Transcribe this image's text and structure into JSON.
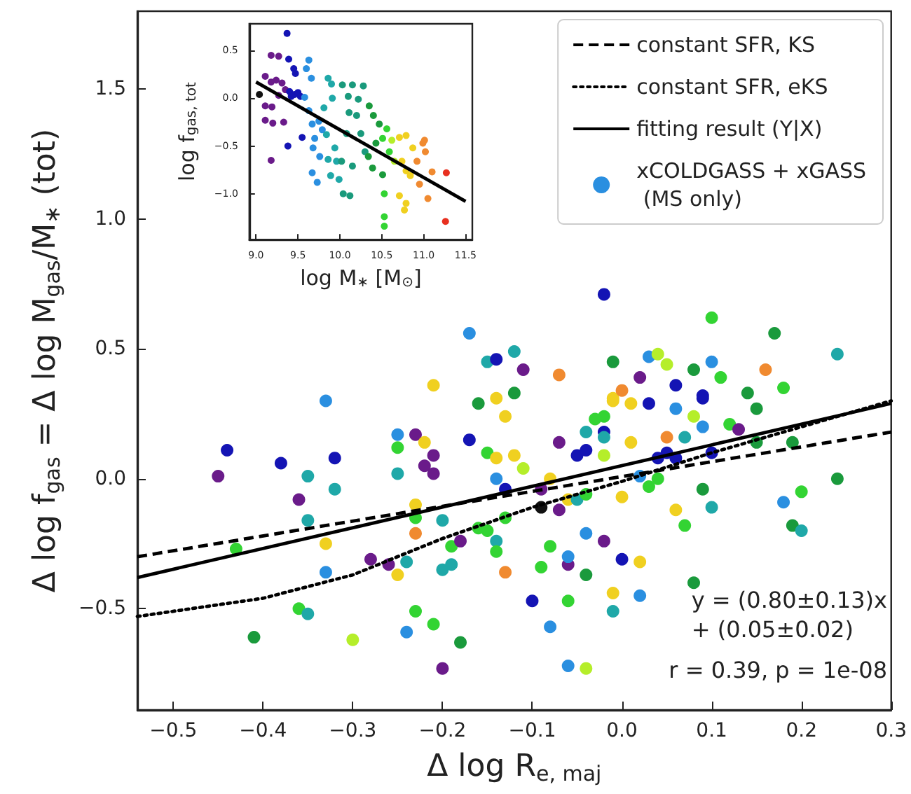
{
  "chart_data": [
    {
      "type": "scatter",
      "xlabel": "Δ log R$_{e, maj}$",
      "ylabel": "Δ log f$_{gas}$ = Δ log M$_{gas}$/M$_{∗}$ (tot)",
      "xlim": [
        -0.54,
        0.3
      ],
      "ylim": [
        -0.89,
        1.8
      ],
      "xticks": [
        {
          "value": -0.5,
          "label": "−0.5"
        },
        {
          "value": -0.4,
          "label": "−0.4"
        },
        {
          "value": -0.3,
          "label": "−0.3"
        },
        {
          "value": -0.2,
          "label": "−0.2"
        },
        {
          "value": -0.1,
          "label": "−0.1"
        },
        {
          "value": 0,
          "label": "0.0"
        },
        {
          "value": 0.1,
          "label": "0.1"
        },
        {
          "value": 0.2,
          "label": "0.2"
        },
        {
          "value": 0.3,
          "label": "0.3"
        }
      ],
      "yticks": [
        {
          "value": -0.5,
          "label": "−0.5"
        },
        {
          "value": 0,
          "label": "0.0"
        },
        {
          "value": 0.5,
          "label": "0.5"
        },
        {
          "value": 1,
          "label": "1.0"
        },
        {
          "value": 1.5,
          "label": "1.5"
        }
      ],
      "grid": false,
      "legend": "top right",
      "marker": "circle",
      "annotations": [
        "y = (0.80±0.13)x\n+ (0.05±0.02)",
        "r = 0.39, p = 1e-08"
      ],
      "series": [
        {
          "type": "line",
          "name": "constant SFR, KS",
          "color": "#000000",
          "line_style": "dashed",
          "marker": "none",
          "x": [
            -0.54,
            0.3
          ],
          "values": [
            -0.3,
            0.18
          ]
        },
        {
          "type": "line",
          "name": "constant SFR, eKS",
          "color": "#000000",
          "line_style": "dotted",
          "marker": "none",
          "x": [
            -0.54,
            -0.4,
            -0.3,
            -0.2,
            -0.1,
            0,
            0.1,
            0.2,
            0.3
          ],
          "values": [
            -0.53,
            -0.46,
            -0.37,
            -0.23,
            -0.11,
            -0.01,
            0.1,
            0.2,
            0.3
          ]
        },
        {
          "type": "line",
          "name": "fitting result (Y|X)",
          "color": "#000000",
          "line_style": "solid",
          "marker": "none",
          "x": [
            -0.54,
            0.3
          ],
          "values": [
            -0.38,
            0.29
          ]
        },
        {
          "type": "scatter",
          "name": "xCOLDGASS + xGASS\n (MS only)",
          "color": "#2a8fe0",
          "x": [
            -0.44,
            -0.45,
            -0.43,
            -0.41,
            -0.38,
            -0.36,
            -0.36,
            -0.35,
            -0.35,
            -0.35,
            -0.33,
            -0.33,
            -0.33,
            -0.32,
            -0.32,
            -0.3,
            -0.28,
            -0.26,
            -0.25,
            -0.25,
            -0.25,
            -0.24,
            -0.25,
            -0.24,
            -0.23,
            -0.23,
            -0.23,
            -0.22,
            -0.23,
            -0.22,
            -0.23,
            -0.21,
            -0.21,
            -0.21,
            -0.21,
            -0.2,
            -0.2,
            -0.2,
            -0.19,
            -0.19,
            -0.18,
            -0.18,
            -0.17,
            -0.17,
            -0.16,
            -0.16,
            -0.15,
            -0.15,
            -0.15,
            -0.14,
            -0.14,
            -0.14,
            -0.14,
            -0.14,
            -0.14,
            -0.13,
            -0.13,
            -0.12,
            -0.12,
            -0.13,
            -0.12,
            -0.11,
            -0.11,
            -0.13,
            -0.1,
            -0.09,
            -0.09,
            -0.08,
            -0.08,
            -0.09,
            -0.08,
            -0.07,
            -0.07,
            -0.07,
            -0.06,
            -0.06,
            -0.06,
            -0.06,
            -0.06,
            -0.05,
            -0.05,
            -0.04,
            -0.04,
            -0.04,
            -0.04,
            -0.04,
            -0.04,
            -0.03,
            -0.02,
            -0.02,
            -0.02,
            -0.02,
            -0.02,
            -0.02,
            -0.01,
            -0.01,
            -0.01,
            -0.01,
            -0.01,
            0,
            0,
            0,
            0.01,
            0.01,
            0.02,
            0.02,
            0.02,
            0.02,
            0.03,
            0.03,
            0.03,
            0.04,
            0.04,
            0.04,
            0.05,
            0.05,
            0.05,
            0.06,
            0.06,
            0.06,
            0.06,
            0.07,
            0.07,
            0.08,
            0.08,
            0.08,
            0.09,
            0.09,
            0.09,
            0.09,
            0.1,
            0.1,
            0.1,
            0.1,
            0.11,
            0.12,
            0.13,
            0.14,
            0.15,
            0.15,
            0.16,
            0.17,
            0.18,
            0.18,
            0.19,
            0.19,
            0.2,
            0.2,
            0.24,
            0.24
          ],
          "values": [
            0.11,
            0.01,
            -0.27,
            -0.61,
            0.06,
            -0.08,
            -0.5,
            0.01,
            -0.52,
            -0.16,
            -0.36,
            -0.25,
            0.3,
            0.08,
            -0.04,
            -0.62,
            -0.31,
            -0.33,
            0.17,
            0.12,
            0.02,
            -0.32,
            -0.37,
            -0.59,
            0.17,
            -0.1,
            -0.15,
            0.14,
            -0.51,
            0.05,
            -0.21,
            0.36,
            0.09,
            0.02,
            -0.56,
            -0.35,
            -0.16,
            -0.73,
            -0.26,
            -0.33,
            -0.63,
            -0.24,
            0.15,
            0.56,
            -0.19,
            0.29,
            0.1,
            0.45,
            -0.2,
            0.31,
            0.08,
            0,
            -0.24,
            0.46,
            -0.28,
            0.24,
            -0.15,
            0.49,
            0.09,
            -0.36,
            0.33,
            0.42,
            0.04,
            -0.04,
            -0.47,
            -0.11,
            -0.04,
            0,
            -0.26,
            -0.34,
            -0.57,
            -0.12,
            0.4,
            0.14,
            -0.33,
            -0.47,
            -0.3,
            -0.08,
            -0.72,
            0.09,
            -0.08,
            0.18,
            -0.37,
            -0.73,
            0.11,
            -0.21,
            -0.06,
            0.23,
            0.24,
            -0.24,
            0.18,
            0.71,
            0.16,
            0.09,
            0.31,
            -0.51,
            0.45,
            0.3,
            -0.44,
            -0.31,
            0.34,
            -0.07,
            0.14,
            0.29,
            -0.32,
            0.01,
            -0.45,
            0.39,
            -0.03,
            0.29,
            0.47,
            0.08,
            0,
            0.48,
            0.44,
            0.16,
            0.1,
            0.08,
            -0.12,
            0.36,
            0.27,
            0.16,
            -0.18,
            -0.4,
            0.42,
            0.24,
            0.31,
            -0.04,
            0.2,
            0.32,
            0.1,
            0.45,
            -0.11,
            0.62,
            0.39,
            0.21,
            0.19,
            0.33,
            0.27,
            0.14,
            0.42,
            0.56,
            -0.09,
            0.35,
            -0.18,
            0.14,
            -0.05,
            -0.2,
            0,
            0.48
          ],
          "colors": [
            "#1414b4",
            "#6a1b8a",
            "#33d433",
            "#1a9a3c",
            "#1414b4",
            "#6a1b8a",
            "#33d433",
            "#1fa8a8",
            "#1fa8a8",
            "#1fa8a8",
            "#2a8fe0",
            "#f0d020",
            "#2a8fe0",
            "#1414b4",
            "#1fa8a8",
            "#b5ee2a",
            "#6a1b8a",
            "#6a1b8a",
            "#2a8fe0",
            "#33d433",
            "#1fa8a8",
            "#1fa8a8",
            "#f0d020",
            "#2a8fe0",
            "#6a1b8a",
            "#f0d020",
            "#33d433",
            "#f0d020",
            "#33d433",
            "#6a1b8a",
            "#f08a30",
            "#f0d020",
            "#6a1b8a",
            "#6a1b8a",
            "#33d433",
            "#1fa8a8",
            "#1fa8a8",
            "#6a1b8a",
            "#33d433",
            "#1fa8a8",
            "#1a9a3c",
            "#6a1b8a",
            "#1414b4",
            "#2a8fe0",
            "#33d433",
            "#1a9a3c",
            "#33d433",
            "#1fa8a8",
            "#33d433",
            "#f0d020",
            "#f0d020",
            "#2a8fe0",
            "#1fa8a8",
            "#1414b4",
            "#33d433",
            "#f0d020",
            "#33d433",
            "#1fa8a8",
            "#f0d020",
            "#f08a30",
            "#1a9a3c",
            "#6a1b8a",
            "#b5ee2a",
            "#1414b4",
            "#1414b4",
            "#111111",
            "#6a1b8a",
            "#f0d020",
            "#33d433",
            "#33d433",
            "#2a8fe0",
            "#6a1b8a",
            "#f08a30",
            "#6a1b8a",
            "#6a1b8a",
            "#33d433",
            "#2a8fe0",
            "#f0d020",
            "#2a8fe0",
            "#1414b4",
            "#1fa8a8",
            "#1fa8a8",
            "#1a9a3c",
            "#b5ee2a",
            "#1414b4",
            "#2a8fe0",
            "#33d433",
            "#33d433",
            "#33d433",
            "#6a1b8a",
            "#1414b4",
            "#1414b4",
            "#1fa8a8",
            "#b5ee2a",
            "#f0d020",
            "#1fa8a8",
            "#1a9a3c",
            "#f0d020",
            "#f0d020",
            "#1414b4",
            "#f08a30",
            "#f0d020",
            "#f0d020",
            "#f0d020",
            "#f0d020",
            "#2a8fe0",
            "#2a8fe0",
            "#6a1b8a",
            "#33d433",
            "#1414b4",
            "#2a8fe0",
            "#1414b4",
            "#33d433",
            "#b5ee2a",
            "#b5ee2a",
            "#f08a30",
            "#1414b4",
            "#1414b4",
            "#f0d020",
            "#1414b4",
            "#2a8fe0",
            "#1fa8a8",
            "#33d433",
            "#1a9a3c",
            "#1a9a3c",
            "#b5ee2a",
            "#1414b4",
            "#1a9a3c",
            "#2a8fe0",
            "#1414b4",
            "#1414b4",
            "#2a8fe0",
            "#1fa8a8",
            "#33d433",
            "#33d433",
            "#33d433",
            "#6a1b8a",
            "#1a9a3c",
            "#1a9a3c",
            "#1a9a3c",
            "#f08a30",
            "#1a9a3c",
            "#2a8fe0",
            "#33d433",
            "#1a9a3c",
            "#1a9a3c",
            "#33d433",
            "#1fa8a8",
            "#1a9a3c",
            "#1fa8a8"
          ]
        }
      ]
    },
    {
      "type": "scatter",
      "xlabel": "log M$_{∗}$ [M$_{⊙}$]",
      "ylabel": "log f$_{gas, tot}$",
      "xlim": [
        8.92,
        11.58
      ],
      "ylim": [
        -1.48,
        0.78
      ],
      "xticks": [
        {
          "value": 9,
          "label": "9.0"
        },
        {
          "value": 9.5,
          "label": "9.5"
        },
        {
          "value": 10,
          "label": "10.0"
        },
        {
          "value": 10.5,
          "label": "10.5"
        },
        {
          "value": 11,
          "label": "11.0"
        },
        {
          "value": 11.5,
          "label": "11.5"
        }
      ],
      "yticks": [
        {
          "value": -1,
          "label": "−1.0"
        },
        {
          "value": -0.5,
          "label": "−0.5"
        },
        {
          "value": 0,
          "label": "0.0"
        },
        {
          "value": 0.5,
          "label": "0.5"
        }
      ],
      "grid": false,
      "marker": "circle",
      "series": [
        {
          "type": "scatter",
          "x": [
            9.04,
            9.11,
            9.18,
            9.27,
            9.18,
            9.24,
            9.31,
            9.11,
            9.19,
            9.2,
            9.33,
            9.18,
            9.11,
            9.27,
            9.35,
            9.37,
            9.39,
            9.45,
            9.47,
            9.4,
            9.46,
            9.5,
            9.53,
            9.38,
            9.55,
            9.42,
            9.63,
            9.6,
            9.66,
            9.58,
            9.63,
            9.67,
            9.68,
            9.7,
            9.67,
            9.76,
            9.73,
            9.75,
            9.79,
            9.86,
            9.9,
            9.91,
            9.84,
            9.86,
            9.89,
            9.94,
            9.96,
            9.99,
            9.81,
            10.03,
            10.1,
            10.15,
            10.11,
            10.08,
            10.04,
            10.12,
            10.2,
            10.28,
            10.25,
            10.3,
            10.15,
            10.02,
            10.22,
            10.35,
            10.4,
            10.47,
            10.34,
            10.39,
            10.43,
            10.51,
            10.51,
            10.56,
            10.59,
            10.53,
            10.53,
            10.53,
            10.65,
            10.62,
            10.71,
            10.79,
            10.74,
            10.79,
            10.84,
            10.71,
            10.77,
            10.87,
            10.79,
            10.92,
            10.99,
            11.02,
            10.95,
            11.05,
            11.01,
            11.1,
            11.27,
            11.26
          ],
          "values": [
            0.04,
            0.23,
            0.45,
            0.44,
            0.17,
            0.19,
            0.16,
            -0.23,
            -0.09,
            -0.26,
            -0.25,
            -0.65,
            -0.08,
            0.03,
            0.09,
            0.68,
            0.41,
            0.31,
            0.26,
            0.07,
            0.04,
            0.06,
            0.02,
            -0.5,
            -0.41,
            0.02,
            0.4,
            0.31,
            0.21,
            0.01,
            -0.13,
            -0.27,
            -0.52,
            -0.42,
            -0.78,
            -0.61,
            -0.88,
            -0.24,
            -0.33,
            0.21,
            0.15,
            0,
            -0.38,
            -0.64,
            -0.81,
            -0.52,
            -0.66,
            -0.85,
            -0.1,
            0.14,
            0.02,
            0.14,
            -0.15,
            -0.37,
            -1,
            -1.02,
            -0.18,
            0.13,
            -0.37,
            -0.56,
            -0.71,
            -0.66,
            -0.01,
            -0.08,
            -0.18,
            -0.27,
            -0.61,
            -0.73,
            -0.47,
            -0.8,
            -0.42,
            -0.32,
            -0.56,
            -1,
            -1.24,
            -1.34,
            -0.66,
            -0.44,
            -0.41,
            -0.39,
            -0.66,
            -0.76,
            -0.81,
            -1.02,
            -1.17,
            -0.52,
            -1.1,
            -0.66,
            -0.47,
            -0.56,
            -0.9,
            -1.05,
            -0.44,
            -0.77,
            -0.78,
            -1.29
          ],
          "colors": [
            "#111111",
            "#6a1b8a",
            "#6a1b8a",
            "#6a1b8a",
            "#6a1b8a",
            "#6a1b8a",
            "#6a1b8a",
            "#6a1b8a",
            "#6a1b8a",
            "#6a1b8a",
            "#6a1b8a",
            "#6a1b8a",
            "#6a1b8a",
            "#6a1b8a",
            "#6a1b8a",
            "#1414b4",
            "#1414b4",
            "#1414b4",
            "#1414b4",
            "#1414b4",
            "#1414b4",
            "#1414b4",
            "#1414b4",
            "#1414b4",
            "#1414b4",
            "#1414b4",
            "#2a8fe0",
            "#2a8fe0",
            "#2a8fe0",
            "#2a8fe0",
            "#2a8fe0",
            "#2a8fe0",
            "#2a8fe0",
            "#2a8fe0",
            "#2a8fe0",
            "#2a8fe0",
            "#2a8fe0",
            "#2a8fe0",
            "#2a8fe0",
            "#1fa8a8",
            "#1fa8a8",
            "#1fa8a8",
            "#1fa8a8",
            "#1fa8a8",
            "#1fa8a8",
            "#1fa8a8",
            "#1fa8a8",
            "#1fa8a8",
            "#1fa8a8",
            "#1a9a7c",
            "#1a9a7c",
            "#1a9a7c",
            "#1a9a7c",
            "#1a9a7c",
            "#1a9a7c",
            "#1a9a7c",
            "#1a9a7c",
            "#1a9a7c",
            "#1a9a7c",
            "#1a9a7c",
            "#1a9a7c",
            "#1a9a7c",
            "#1a9a7c",
            "#1a9a3c",
            "#1a9a3c",
            "#1a9a3c",
            "#1a9a3c",
            "#1a9a3c",
            "#1a9a3c",
            "#1a9a3c",
            "#33d433",
            "#33d433",
            "#33d433",
            "#33d433",
            "#33d433",
            "#33d433",
            "#b5ee2a",
            "#b5ee2a",
            "#f0d020",
            "#f0d020",
            "#f0d020",
            "#f0d020",
            "#f0d020",
            "#f0d020",
            "#f0d020",
            "#f0d020",
            "#f0d020",
            "#f08a30",
            "#f08a30",
            "#f08a30",
            "#f08a30",
            "#f08a30",
            "#f08a30",
            "#f08a30",
            "#e83020",
            "#e83020"
          ]
        },
        {
          "type": "line",
          "color": "#000000",
          "line_style": "solid",
          "marker": "none",
          "x": [
            9,
            11.5
          ],
          "values": [
            0.17,
            -1.08
          ]
        }
      ]
    }
  ]
}
